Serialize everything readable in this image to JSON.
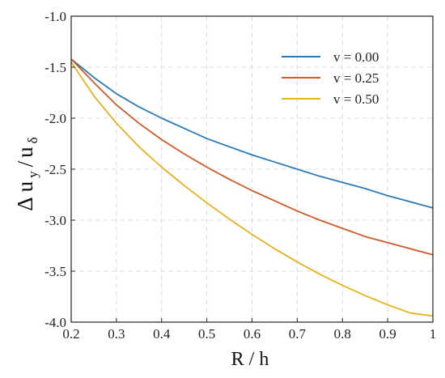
{
  "chart_data": {
    "type": "line",
    "title": "",
    "xlabel": "R / h",
    "ylabel": "Δuy/uδ",
    "ylabel_parts": {
      "delta": "Δ",
      "u1": "u",
      "sub1": "y",
      "slash": "/",
      "u2": "u",
      "sub2": "δ"
    },
    "xlim": [
      0.2,
      1.0
    ],
    "ylim": [
      -4.0,
      -1.0
    ],
    "x_ticks": [
      0.2,
      0.3,
      0.4,
      0.5,
      0.6,
      0.7,
      0.8,
      0.9,
      1.0
    ],
    "x_tick_labels": [
      "0.2",
      "0.3",
      "0.4",
      "0.5",
      "0.6",
      "0.7",
      "0.8",
      "0.9",
      "1"
    ],
    "y_ticks": [
      -1.0,
      -1.5,
      -2.0,
      -2.5,
      -3.0,
      -3.5,
      -4.0
    ],
    "y_tick_labels": [
      "-1.0",
      "-1.5",
      "-2.0",
      "-2.5",
      "-3.0",
      "-3.5",
      "-4.0"
    ],
    "grid": true,
    "legend_position": "top-right",
    "x": [
      0.2,
      0.25,
      0.3,
      0.35,
      0.4,
      0.45,
      0.5,
      0.55,
      0.6,
      0.65,
      0.7,
      0.75,
      0.8,
      0.85,
      0.9,
      0.95,
      1.0
    ],
    "series": [
      {
        "name": "v = 0.00",
        "color": "#2a7ab8",
        "values": [
          -1.42,
          -1.6,
          -1.76,
          -1.89,
          -2.0,
          -2.1,
          -2.2,
          -2.28,
          -2.36,
          -2.43,
          -2.5,
          -2.57,
          -2.63,
          -2.69,
          -2.76,
          -2.82,
          -2.88
        ]
      },
      {
        "name": "v = 0.25",
        "color": "#d05a28",
        "values": [
          -1.42,
          -1.65,
          -1.87,
          -2.05,
          -2.21,
          -2.35,
          -2.48,
          -2.6,
          -2.71,
          -2.81,
          -2.91,
          -3.0,
          -3.08,
          -3.16,
          -3.22,
          -3.28,
          -3.34
        ]
      },
      {
        "name": "v = 0.50",
        "color": "#e8b21c",
        "values": [
          -1.45,
          -1.78,
          -2.05,
          -2.28,
          -2.48,
          -2.66,
          -2.83,
          -2.99,
          -3.14,
          -3.28,
          -3.41,
          -3.53,
          -3.64,
          -3.74,
          -3.83,
          -3.91,
          -3.94
        ]
      }
    ]
  }
}
